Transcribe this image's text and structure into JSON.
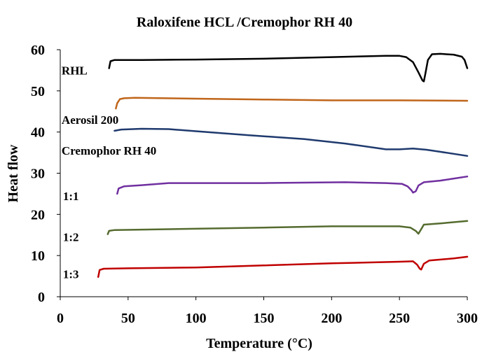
{
  "chart_data": {
    "type": "line",
    "title": "Raloxifene HCL /Cremophor RH 40",
    "xlabel": "Temperature (°C)",
    "ylabel": "Heat flow",
    "xlim": [
      0,
      300
    ],
    "ylim": [
      0,
      60
    ],
    "xticks": [
      "0",
      "50",
      "100",
      "150",
      "200",
      "250",
      "300"
    ],
    "yticks": [
      "0",
      "10",
      "20",
      "30",
      "40",
      "50",
      "60"
    ],
    "grid": false,
    "series": [
      {
        "name": "RHL",
        "color": "#000000",
        "points": [
          [
            36,
            55.5
          ],
          [
            37,
            57.2
          ],
          [
            40,
            57.5
          ],
          [
            60,
            57.5
          ],
          [
            100,
            57.6
          ],
          [
            150,
            57.8
          ],
          [
            200,
            58.2
          ],
          [
            240,
            58.5
          ],
          [
            250,
            58.5
          ],
          [
            255,
            58.2
          ],
          [
            260,
            57
          ],
          [
            264,
            54.5
          ],
          [
            267,
            52.5
          ],
          [
            268,
            52.3
          ],
          [
            269,
            54
          ],
          [
            271,
            57.5
          ],
          [
            274,
            58.9
          ],
          [
            280,
            59
          ],
          [
            290,
            58.8
          ],
          [
            296,
            58.3
          ],
          [
            298,
            57.5
          ],
          [
            300,
            55.5
          ]
        ]
      },
      {
        "name": "Aerosil 200",
        "color": "#C0651A",
        "points": [
          [
            41,
            45.7
          ],
          [
            42,
            47
          ],
          [
            44,
            48
          ],
          [
            47,
            48.2
          ],
          [
            55,
            48.3
          ],
          [
            100,
            48.1
          ],
          [
            150,
            47.9
          ],
          [
            200,
            47.7
          ],
          [
            250,
            47.7
          ],
          [
            300,
            47.6
          ]
        ]
      },
      {
        "name": "Cremophor RH 40",
        "color": "#1F3A6E",
        "points": [
          [
            40,
            40.3
          ],
          [
            45,
            40.6
          ],
          [
            60,
            40.8
          ],
          [
            80,
            40.7
          ],
          [
            100,
            40.2
          ],
          [
            140,
            39.2
          ],
          [
            180,
            38.3
          ],
          [
            210,
            37.2
          ],
          [
            240,
            35.8
          ],
          [
            250,
            35.8
          ],
          [
            260,
            36
          ],
          [
            270,
            35.7
          ],
          [
            280,
            35.2
          ],
          [
            300,
            34.2
          ]
        ]
      },
      {
        "name": "1:1",
        "color": "#7030A0",
        "points": [
          [
            42,
            25
          ],
          [
            43,
            26.3
          ],
          [
            47,
            26.8
          ],
          [
            60,
            27.1
          ],
          [
            80,
            27.6
          ],
          [
            150,
            27.6
          ],
          [
            210,
            27.8
          ],
          [
            240,
            27.6
          ],
          [
            252,
            27.4
          ],
          [
            256,
            26.8
          ],
          [
            259,
            25.8
          ],
          [
            260,
            25.3
          ],
          [
            262,
            25.6
          ],
          [
            264,
            27
          ],
          [
            268,
            27.8
          ],
          [
            280,
            28.2
          ],
          [
            300,
            29.2
          ]
        ]
      },
      {
        "name": "1:2",
        "color": "#556B2F",
        "points": [
          [
            35,
            15.2
          ],
          [
            36,
            16
          ],
          [
            40,
            16.2
          ],
          [
            80,
            16.4
          ],
          [
            150,
            16.8
          ],
          [
            200,
            17.1
          ],
          [
            250,
            17.1
          ],
          [
            258,
            16.8
          ],
          [
            262,
            16
          ],
          [
            264,
            15.3
          ],
          [
            266,
            16.4
          ],
          [
            268,
            17.5
          ],
          [
            280,
            17.8
          ],
          [
            300,
            18.4
          ]
        ]
      },
      {
        "name": "1:3",
        "color": "#C00000",
        "points": [
          [
            28,
            4.8
          ],
          [
            29,
            6.5
          ],
          [
            32,
            6.8
          ],
          [
            50,
            6.9
          ],
          [
            100,
            7.1
          ],
          [
            150,
            7.6
          ],
          [
            200,
            8.1
          ],
          [
            250,
            8.5
          ],
          [
            260,
            8.6
          ],
          [
            263,
            7.8
          ],
          [
            265,
            6.8
          ],
          [
            266,
            6.6
          ],
          [
            268,
            8
          ],
          [
            272,
            8.8
          ],
          [
            290,
            9.3
          ],
          [
            300,
            9.7
          ]
        ]
      }
    ]
  },
  "series_labels": [
    {
      "text": "RHL",
      "x": 1,
      "y": 55
    },
    {
      "text": "Aerosil 200",
      "x": 1,
      "y": 43
    },
    {
      "text": "Cremophor RH 40",
      "x": 1,
      "y": 35.5
    },
    {
      "text": "1:1",
      "x": 2,
      "y": 24.5
    },
    {
      "text": "1:2",
      "x": 2,
      "y": 14.5
    },
    {
      "text": "1:3",
      "x": 2,
      "y": 5.5
    }
  ]
}
